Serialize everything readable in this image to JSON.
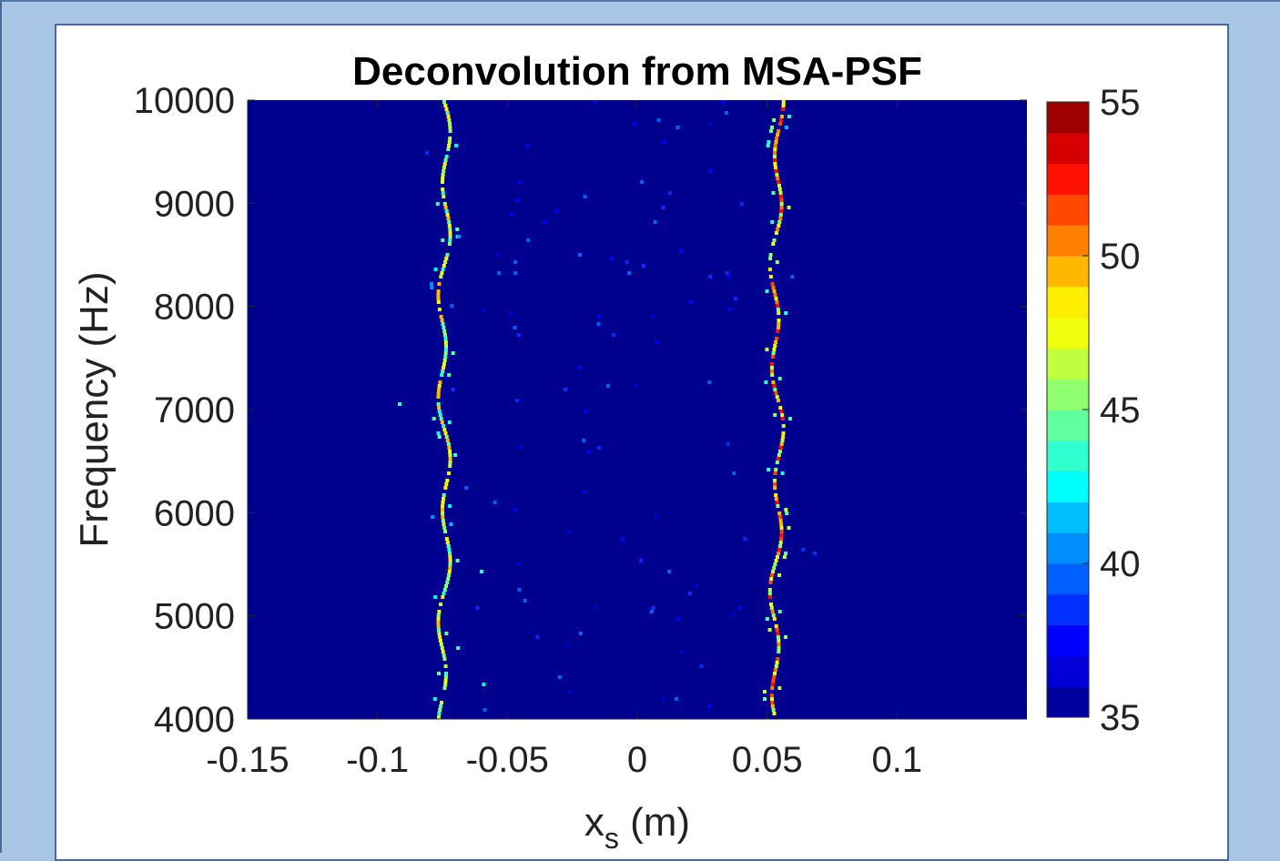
{
  "chart_data": {
    "type": "heatmap",
    "title": "Deconvolution from MSA-PSF",
    "xlabel": "x",
    "xlabel_sub": "s",
    "xlabel_unit": " (m)",
    "ylabel": "Frequency (Hz)",
    "xlim": [
      -0.15,
      0.15
    ],
    "ylim": [
      4000,
      10000
    ],
    "xticks": [
      -0.15,
      -0.1,
      -0.05,
      0,
      0.05,
      0.1
    ],
    "xtick_labels": [
      "-0.15",
      "-0.1",
      "-0.05",
      "0",
      "0.05",
      "0.1"
    ],
    "yticks": [
      4000,
      5000,
      6000,
      7000,
      8000,
      9000,
      10000
    ],
    "ytick_labels": [
      "4000",
      "5000",
      "6000",
      "7000",
      "8000",
      "9000",
      "10000"
    ],
    "colorbar": {
      "range": [
        35,
        55
      ],
      "ticks": [
        35,
        40,
        45,
        50,
        55
      ],
      "tick_labels": [
        "35",
        "40",
        "45",
        "50",
        "55"
      ],
      "colormap": "jet",
      "levels": 20
    },
    "background_value": 35,
    "sources": [
      {
        "x": -0.075,
        "value_range": [
          43,
          50
        ]
      },
      {
        "x": 0.053,
        "value_range": [
          45,
          53
        ]
      }
    ],
    "colors": {
      "background": "#00008f",
      "panel_bg": "#a9c6e4"
    }
  }
}
